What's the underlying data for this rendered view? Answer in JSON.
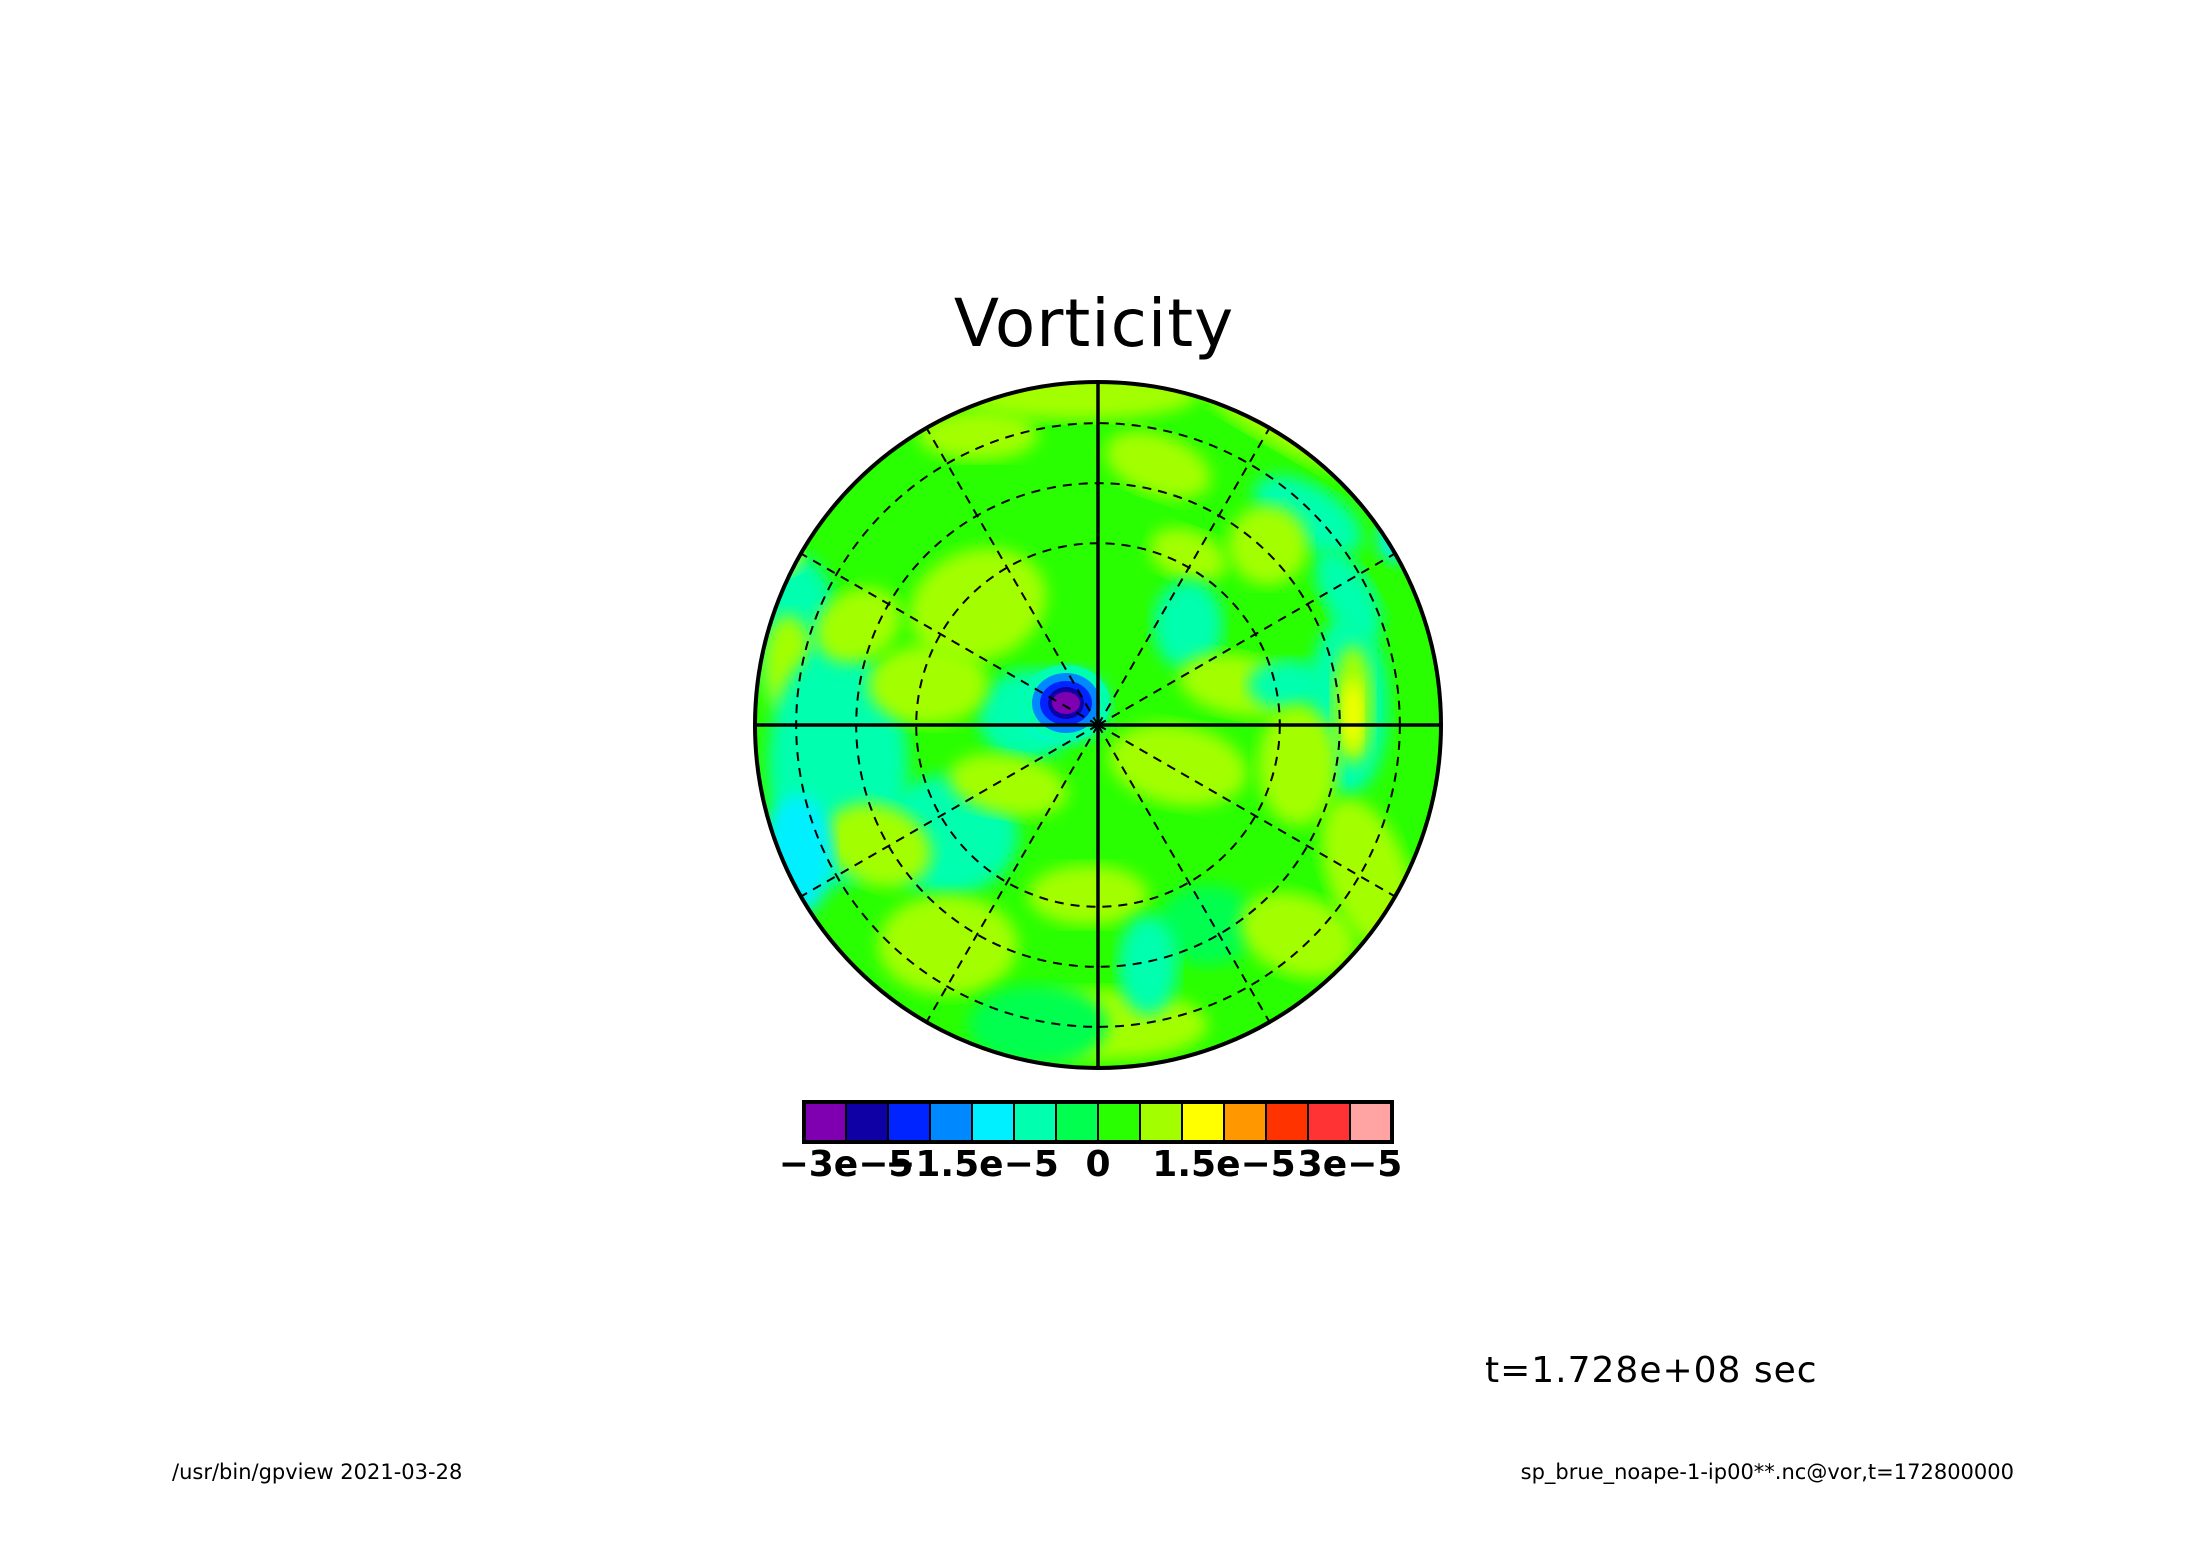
{
  "chart_data": {
    "type": "heatmap",
    "projection": "polar-stereographic",
    "title": "Vorticity",
    "grid": true,
    "colorbar": {
      "colors": [
        "#7e00b0",
        "#0f00a6",
        "#0024ff",
        "#0089ff",
        "#00f0ff",
        "#00ffae",
        "#00ff4f",
        "#29ff00",
        "#a3ff00",
        "#ffff00",
        "#ff9800",
        "#ff3300",
        "#ff3333",
        "#ffa3a3"
      ],
      "tick_labels": [
        "−3e−5",
        "−1.5e−5",
        "0",
        "1.5e−5",
        "3e−5"
      ],
      "tick_values": [
        -3e-05,
        -1.5e-05,
        0,
        1.5e-05,
        3e-05
      ],
      "level_interval": 5e-06,
      "range": [
        -3.5e-05,
        3.5e-05
      ]
    },
    "features": [
      {
        "desc": "negative vortex near pole",
        "value": -3e-05
      },
      {
        "desc": "positive patch east side",
        "value": 1.5e-05
      }
    ]
  },
  "annotation": "t=1.728e+08 sec",
  "footer": {
    "left": "/usr/bin/gpview  2021-03-28",
    "right": "sp_brue_noape-1-ip00**.nc@vor,t=172800000"
  }
}
